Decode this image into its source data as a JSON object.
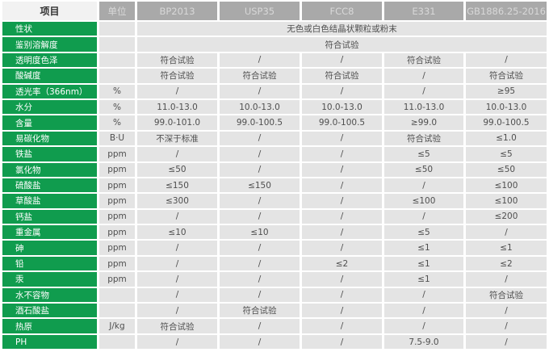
{
  "table": {
    "header": [
      "项目",
      "单位",
      "BP2013",
      "USP35",
      "FCC8",
      "E331",
      "GB1886.25-2016"
    ],
    "rows": [
      {
        "item": "性状",
        "unit": "",
        "span": "无色或白色结晶状颗粒或粉末"
      },
      {
        "item": "鉴别溶解度",
        "unit": "",
        "span": "符合试验"
      },
      {
        "item": "透明度色泽",
        "unit": "",
        "values": [
          "符合试验",
          "/",
          "/",
          "符合试验",
          "/"
        ]
      },
      {
        "item": "酸碱度",
        "unit": "",
        "values": [
          "符合试验",
          "符合试验",
          "符合试验",
          "/",
          "符合试验"
        ]
      },
      {
        "item": "透光率（366nm）",
        "unit": "%",
        "values": [
          "/",
          "/",
          "/",
          "/",
          "≥95"
        ]
      },
      {
        "item": "水分",
        "unit": "%",
        "values": [
          "11.0-13.0",
          "10.0-13.0",
          "10.0-13.0",
          "11.0-13.0",
          "10.0-13.0"
        ]
      },
      {
        "item": "含量",
        "unit": "%",
        "values": [
          "99.0-101.0",
          "99.0-100.5",
          "99.0-100.5",
          "≥99.0",
          "99.0-100.5"
        ]
      },
      {
        "item": "易碳化物",
        "unit": "B·U",
        "values": [
          "不深于标准",
          "/",
          "/",
          "符合试验",
          "≤1.0"
        ]
      },
      {
        "item": "铁盐",
        "unit": "ppm",
        "values": [
          "/",
          "/",
          "/",
          "≤5",
          "≤5"
        ]
      },
      {
        "item": "氯化物",
        "unit": "ppm",
        "values": [
          "≤50",
          "/",
          "/",
          "≤50",
          "≤50"
        ]
      },
      {
        "item": "硫酸盐",
        "unit": "ppm",
        "values": [
          "≤150",
          "≤150",
          "/",
          "/",
          "≤100"
        ]
      },
      {
        "item": "草酸盐",
        "unit": "ppm",
        "values": [
          "≤300",
          "/",
          "/",
          "≤100",
          "≤100"
        ]
      },
      {
        "item": "钙盐",
        "unit": "ppm",
        "values": [
          "/",
          "/",
          "/",
          "/",
          "≤200"
        ]
      },
      {
        "item": "重金属",
        "unit": "ppm",
        "values": [
          "≤10",
          "≤10",
          "/",
          "≤5",
          "/"
        ]
      },
      {
        "item": "砷",
        "unit": "ppm",
        "values": [
          "/",
          "/",
          "/",
          "≤1",
          "≤1"
        ]
      },
      {
        "item": "铅",
        "unit": "ppm",
        "values": [
          "/",
          "/",
          "≤2",
          "≤1",
          "≤2"
        ]
      },
      {
        "item": "汞",
        "unit": "ppm",
        "values": [
          "/",
          "/",
          "/",
          "≤1",
          "/"
        ]
      },
      {
        "item": "水不容物",
        "unit": "",
        "values": [
          "/",
          "/",
          "/",
          "/",
          "符合试验"
        ]
      },
      {
        "item": "酒石酸盐",
        "unit": "",
        "values": [
          "/",
          "符合试验",
          "/",
          "/",
          "/"
        ]
      },
      {
        "item": "热原",
        "unit": "J/kg",
        "values": [
          "符合试验",
          "/",
          "/",
          "/",
          "/"
        ]
      },
      {
        "item": "PH",
        "unit": "",
        "values": [
          "/",
          "/",
          "/",
          "7.5-9.0",
          "/"
        ]
      }
    ]
  },
  "colors": {
    "green": "#109c4e",
    "header_bg": "#a9a9a9",
    "header_text": "#d8d8d8",
    "item_header_bg": "#f2f2f2",
    "cell_bg": "#e4e4e4",
    "cell_text": "#4f4f4f"
  }
}
